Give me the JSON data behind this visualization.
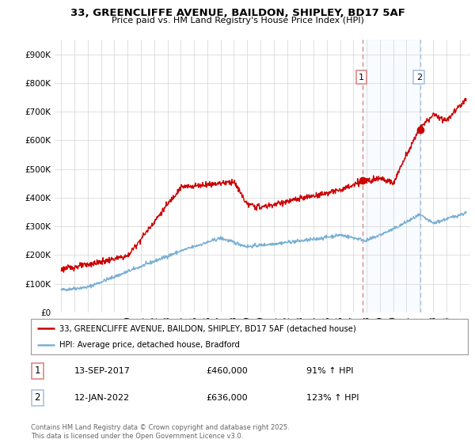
{
  "title": "33, GREENCLIFFE AVENUE, BAILDON, SHIPLEY, BD17 5AF",
  "subtitle": "Price paid vs. HM Land Registry's House Price Index (HPI)",
  "legend_line1": "33, GREENCLIFFE AVENUE, BAILDON, SHIPLEY, BD17 5AF (detached house)",
  "legend_line2": "HPI: Average price, detached house, Bradford",
  "annotation1_label": "1",
  "annotation1_date": "13-SEP-2017",
  "annotation1_price": "£460,000",
  "annotation1_hpi": "91% ↑ HPI",
  "annotation2_label": "2",
  "annotation2_date": "12-JAN-2022",
  "annotation2_price": "£636,000",
  "annotation2_hpi": "123% ↑ HPI",
  "footer": "Contains HM Land Registry data © Crown copyright and database right 2025.\nThis data is licensed under the Open Government Licence v3.0.",
  "red_color": "#cc0000",
  "blue_color": "#7ab0d4",
  "vline1_color": "#dd8888",
  "vline2_color": "#aac4e0",
  "point1_x": 2017.71,
  "point1_y": 460000,
  "point2_x": 2022.04,
  "point2_y": 636000,
  "ylim": [
    0,
    950000
  ],
  "xlim": [
    1994.5,
    2025.8
  ],
  "yticks": [
    0,
    100000,
    200000,
    300000,
    400000,
    500000,
    600000,
    700000,
    800000,
    900000
  ],
  "ytick_labels": [
    "£0",
    "£100K",
    "£200K",
    "£300K",
    "£400K",
    "£500K",
    "£600K",
    "£700K",
    "£800K",
    "£900K"
  ],
  "xticks": [
    1995,
    1996,
    1997,
    1998,
    1999,
    2000,
    2001,
    2002,
    2003,
    2004,
    2005,
    2006,
    2007,
    2008,
    2009,
    2010,
    2011,
    2012,
    2013,
    2014,
    2015,
    2016,
    2017,
    2018,
    2019,
    2020,
    2021,
    2022,
    2023,
    2024,
    2025
  ]
}
